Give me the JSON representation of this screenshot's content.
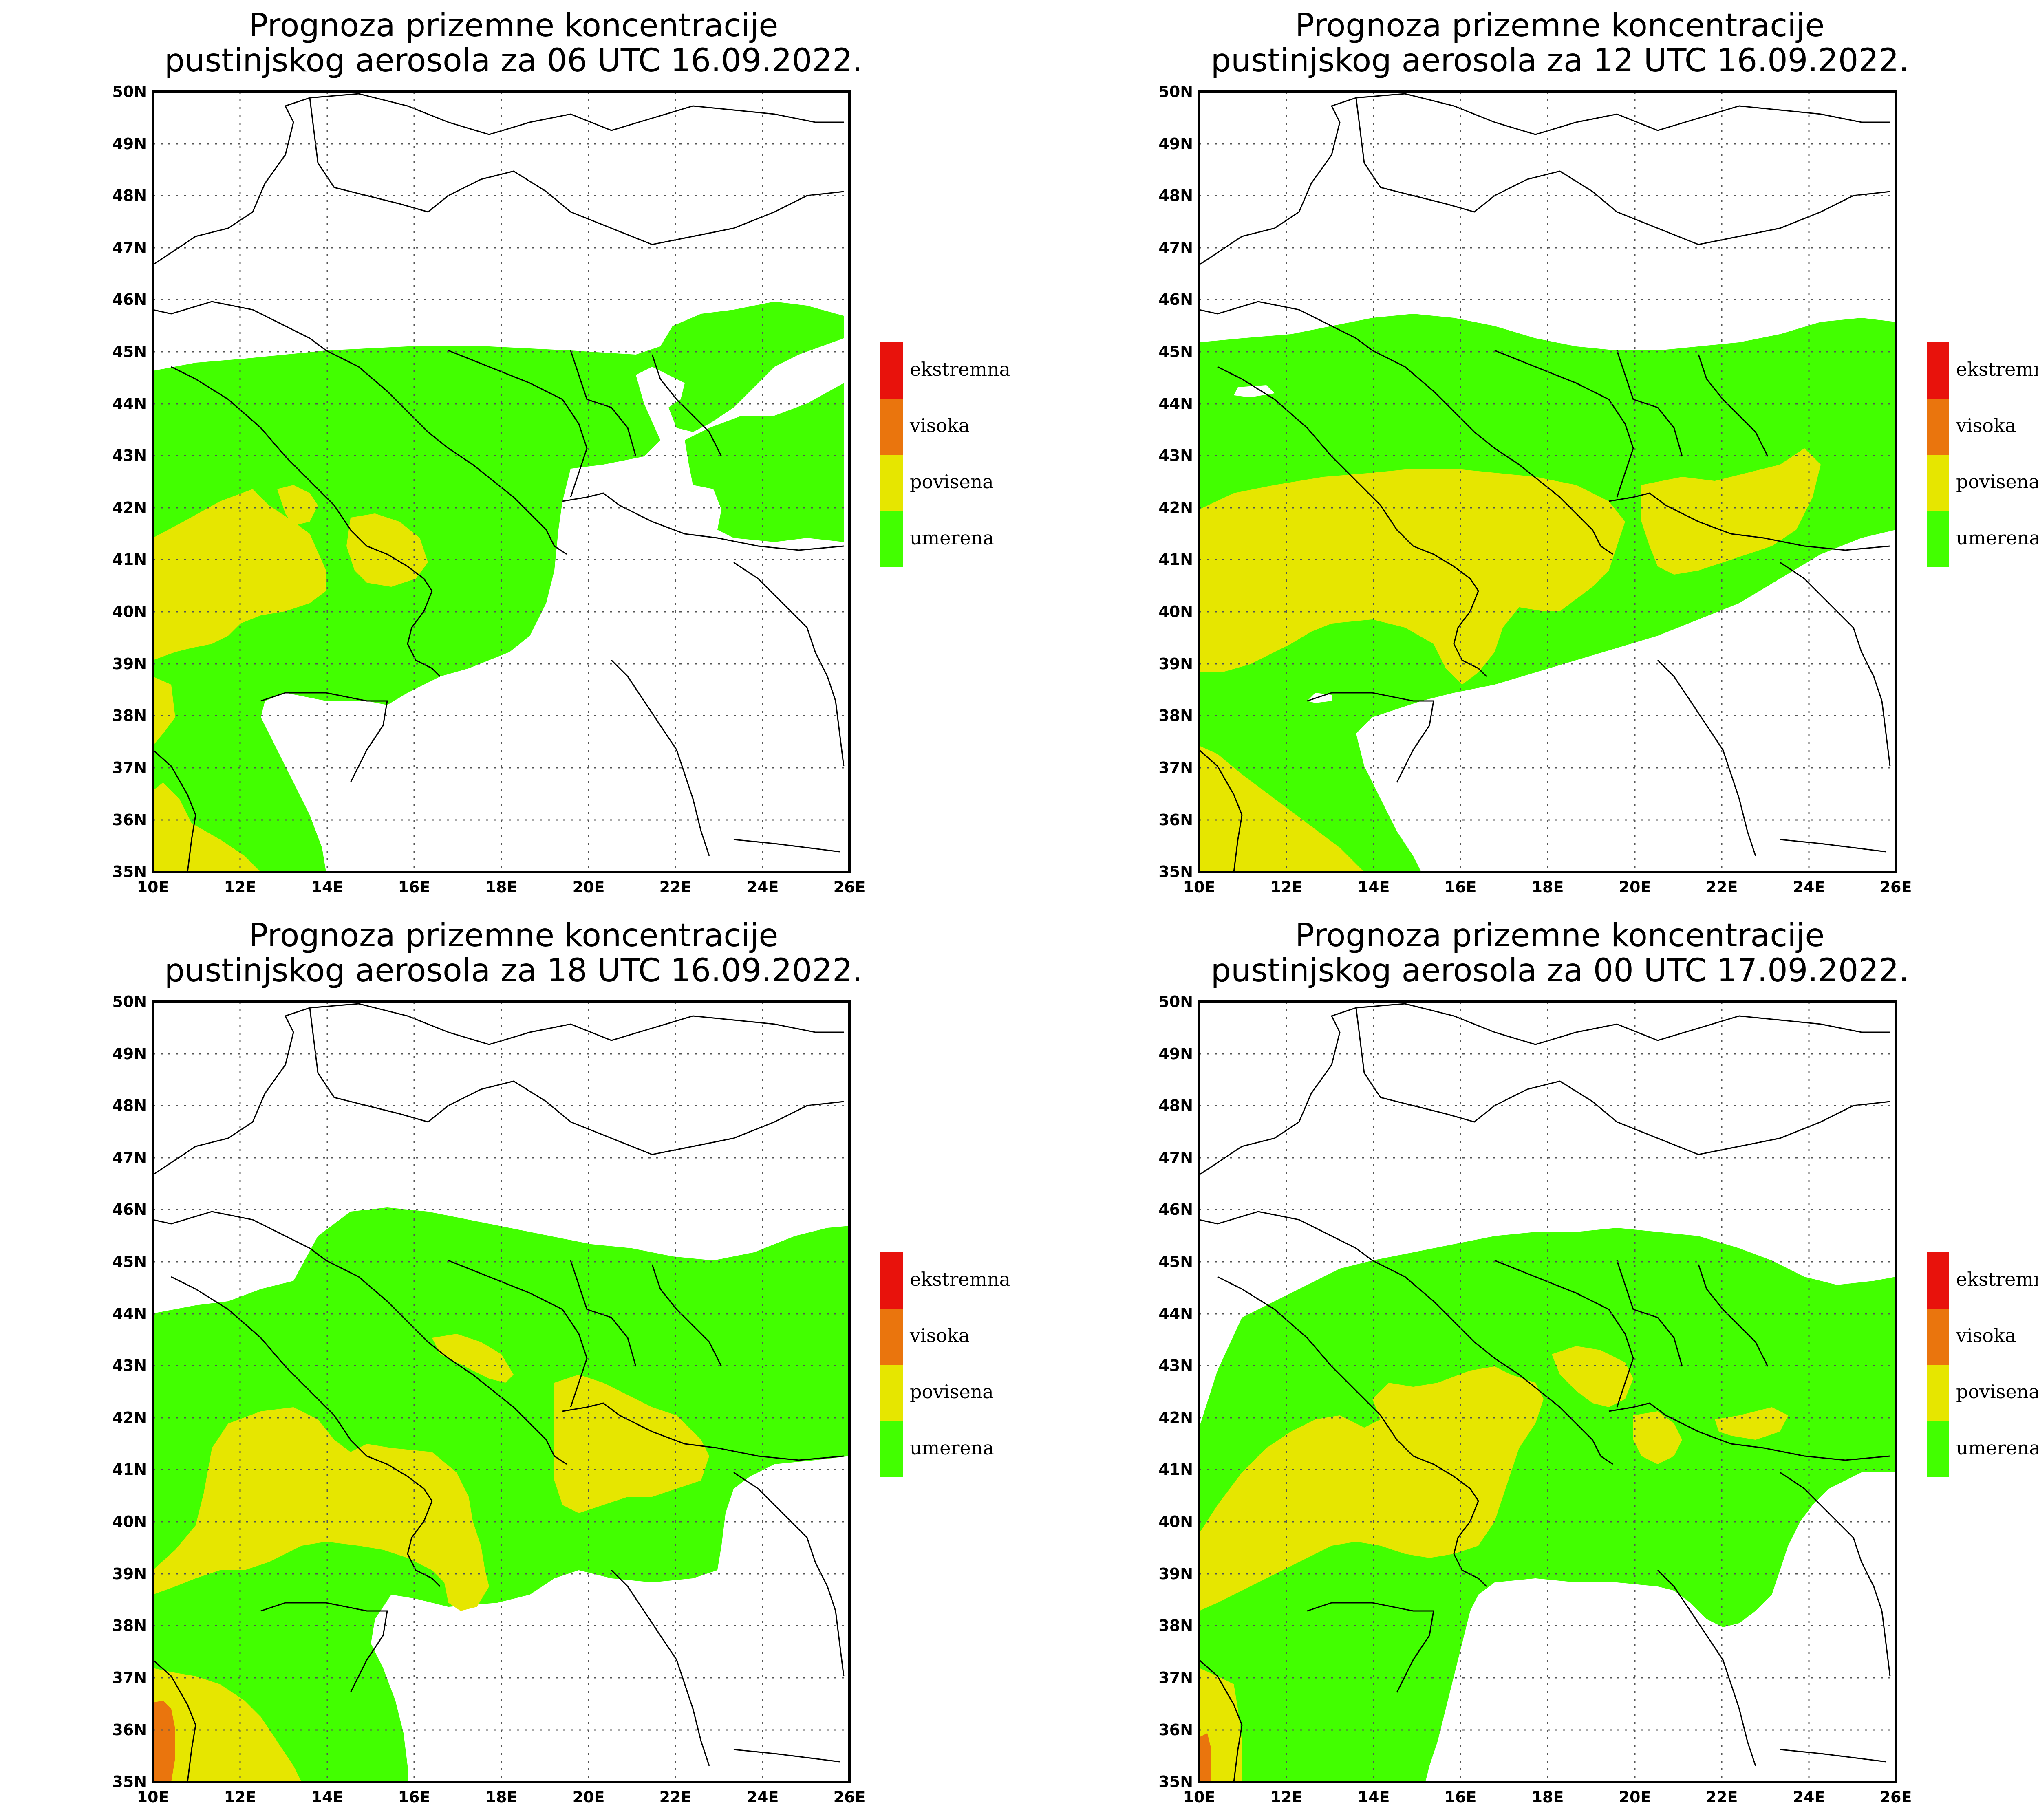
{
  "panels": [
    {
      "title_line1": "Prognoza prizemne koncentracije",
      "title_line2": "pustinjskog aerosola za 06 UTC 16.09.2022."
    },
    {
      "title_line1": "Prognoza prizemne koncentracije",
      "title_line2": "pustinjskog aerosola za 12 UTC 16.09.2022."
    },
    {
      "title_line1": "Prognoza prizemne koncentracije",
      "title_line2": "pustinjskog aerosola za 18 UTC 16.09.2022."
    },
    {
      "title_line1": "Prognoza prizemne koncentracije",
      "title_line2": "pustinjskog aerosola za 00 UTC 17.09.2022."
    }
  ],
  "axes": {
    "lat_labels": [
      "50N",
      "49N",
      "48N",
      "47N",
      "46N",
      "45N",
      "44N",
      "43N",
      "42N",
      "41N",
      "40N",
      "39N",
      "38N",
      "37N",
      "36N",
      "35N"
    ],
    "lon_labels": [
      "10E",
      "12E",
      "14E",
      "16E",
      "18E",
      "20E",
      "22E",
      "24E",
      "26E"
    ]
  },
  "legend": [
    {
      "label": "ekstremna",
      "color": "#e8120c"
    },
    {
      "label": "visoka",
      "color": "#ea750d"
    },
    {
      "label": "povisena",
      "color": "#e6e600"
    },
    {
      "label": "umerena",
      "color": "#42ff00"
    }
  ],
  "colors": {
    "green": "#42ff00",
    "yellow": "#e6e600",
    "orange": "#ea750d",
    "red": "#e8120c"
  }
}
